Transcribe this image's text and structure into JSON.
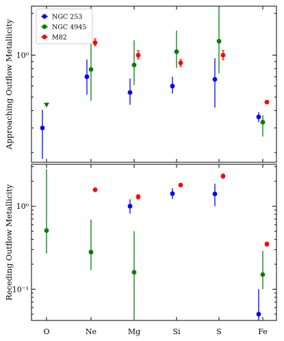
{
  "chart_data": {
    "type": "scatter",
    "elements": [
      "O",
      "Ne",
      "Mg",
      "Si",
      "S",
      "Fe"
    ],
    "legend": {
      "placement": "top-left",
      "entries": [
        {
          "label": "NGC 253",
          "color": "#0000ff"
        },
        {
          "label": "NGC 4945",
          "color": "#008000"
        },
        {
          "label": "M82",
          "color": "#ff0000"
        }
      ]
    },
    "panels": [
      {
        "id": "top",
        "ylabel": "Approaching Outflow Metallicity",
        "yscale": "log",
        "ylim": [
          0.17,
          2.25
        ],
        "yticks": [
          {
            "value": 1.0,
            "label": "10⁰"
          }
        ],
        "series": [
          {
            "name": "NGC 253",
            "color": "#0000ff",
            "points": [
              {
                "element": "O",
                "y": 0.3,
                "ylo": 0.18,
                "yhi": 0.405
              },
              {
                "element": "Ne",
                "y": 0.7,
                "ylo": 0.52,
                "yhi": 0.93
              },
              {
                "element": "Mg",
                "y": 0.54,
                "ylo": 0.44,
                "yhi": 0.68
              },
              {
                "element": "Si",
                "y": 0.6,
                "ylo": 0.53,
                "yhi": 0.7
              },
              {
                "element": "S",
                "y": 0.67,
                "ylo": 0.42,
                "yhi": 0.95
              },
              {
                "element": "Fe",
                "y": 0.36,
                "ylo": 0.33,
                "yhi": 0.39
              }
            ]
          },
          {
            "name": "NGC 4945",
            "color": "#008000",
            "points": [
              {
                "element": "O",
                "y": 0.44,
                "upper_limit": true
              },
              {
                "element": "Ne",
                "y": 0.79,
                "ylo": 0.47,
                "yhi": 1.2
              },
              {
                "element": "Mg",
                "y": 0.85,
                "ylo": 0.61,
                "yhi": 1.28
              },
              {
                "element": "Si",
                "y": 1.06,
                "ylo": 0.81,
                "yhi": 1.5
              },
              {
                "element": "S",
                "y": 1.26,
                "ylo": 0.74,
                "yhi": 2.15
              },
              {
                "element": "Fe",
                "y": 0.33,
                "ylo": 0.26,
                "yhi": 0.37
              }
            ]
          },
          {
            "name": "M82",
            "color": "#ff0000",
            "points": [
              {
                "element": "Ne",
                "y": 1.23,
                "ylo": 1.17,
                "yhi": 1.31
              },
              {
                "element": "Mg",
                "y": 1.0,
                "ylo": 0.94,
                "yhi": 1.08
              },
              {
                "element": "Si",
                "y": 0.88,
                "ylo": 0.83,
                "yhi": 0.93
              },
              {
                "element": "S",
                "y": 1.0,
                "ylo": 0.93,
                "yhi": 1.08
              },
              {
                "element": "Fe",
                "y": 0.46,
                "ylo": 0.45,
                "yhi": 0.47
              }
            ]
          }
        ]
      },
      {
        "id": "bottom",
        "ylabel": "Receding Outflow Metallicity",
        "yscale": "log",
        "ylim": [
          0.042,
          3.2
        ],
        "yticks": [
          {
            "value": 0.1,
            "label": "10⁻¹"
          },
          {
            "value": 1.0,
            "label": "10⁰"
          }
        ],
        "series": [
          {
            "name": "NGC 253",
            "color": "#0000ff",
            "points": [
              {
                "element": "Mg",
                "y": 1.0,
                "ylo": 0.81,
                "yhi": 1.21
              },
              {
                "element": "Si",
                "y": 1.42,
                "ylo": 1.22,
                "yhi": 1.65
              },
              {
                "element": "S",
                "y": 1.41,
                "ylo": 1.0,
                "yhi": 1.87
              },
              {
                "element": "Fe",
                "y": 0.05,
                "ylo": 0.032,
                "yhi": 0.1
              }
            ]
          },
          {
            "name": "NGC 4945",
            "color": "#008000",
            "points": [
              {
                "element": "O",
                "y": 0.51,
                "ylo": 0.27,
                "yhi": 2.8
              },
              {
                "element": "Ne",
                "y": 0.28,
                "ylo": 0.17,
                "yhi": 0.69
              },
              {
                "element": "Mg",
                "y": 0.16,
                "ylo": 0.032,
                "yhi": 0.5
              },
              {
                "element": "Fe",
                "y": 0.15,
                "ylo": 0.1,
                "yhi": 0.29
              }
            ]
          },
          {
            "name": "M82",
            "color": "#ff0000",
            "points": [
              {
                "element": "Ne",
                "y": 1.58,
                "ylo": 1.5,
                "yhi": 1.66
              },
              {
                "element": "Mg",
                "y": 1.3,
                "ylo": 1.22,
                "yhi": 1.38
              },
              {
                "element": "Si",
                "y": 1.8,
                "ylo": 1.72,
                "yhi": 1.88
              },
              {
                "element": "S",
                "y": 2.3,
                "ylo": 2.18,
                "yhi": 2.45
              },
              {
                "element": "Fe",
                "y": 0.35,
                "ylo": 0.33,
                "yhi": 0.37
              }
            ]
          }
        ]
      }
    ]
  }
}
